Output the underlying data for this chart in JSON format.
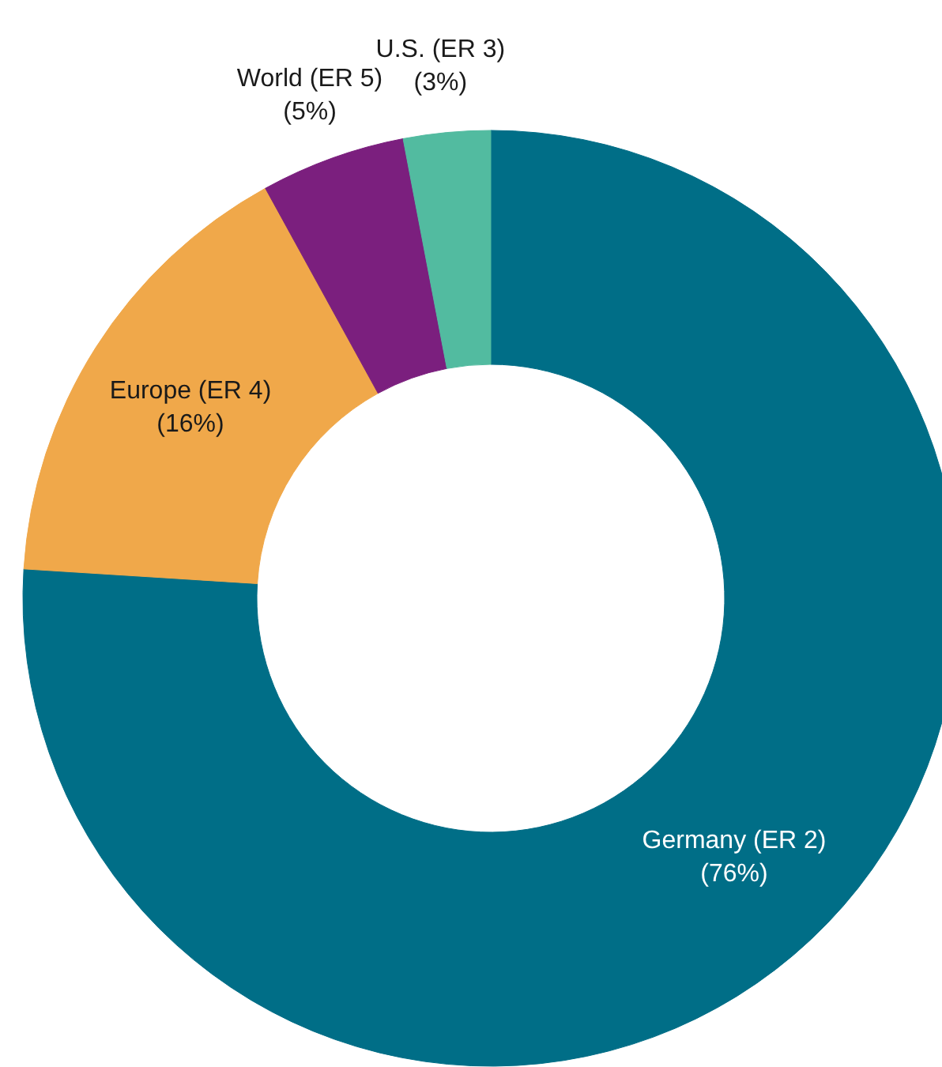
{
  "chart_data": {
    "type": "donut",
    "categories": [
      "Germany (ER 2)",
      "Europe (ER 4)",
      "World (ER 5)",
      "U.S. (ER 3)"
    ],
    "values": [
      76,
      16,
      5,
      3
    ],
    "value_labels": [
      "(76%)",
      "(16%)",
      "(5%)",
      "(3%)"
    ],
    "colors": [
      "#006e87",
      "#f0a84a",
      "#7b1f7e",
      "#52bba0"
    ]
  }
}
